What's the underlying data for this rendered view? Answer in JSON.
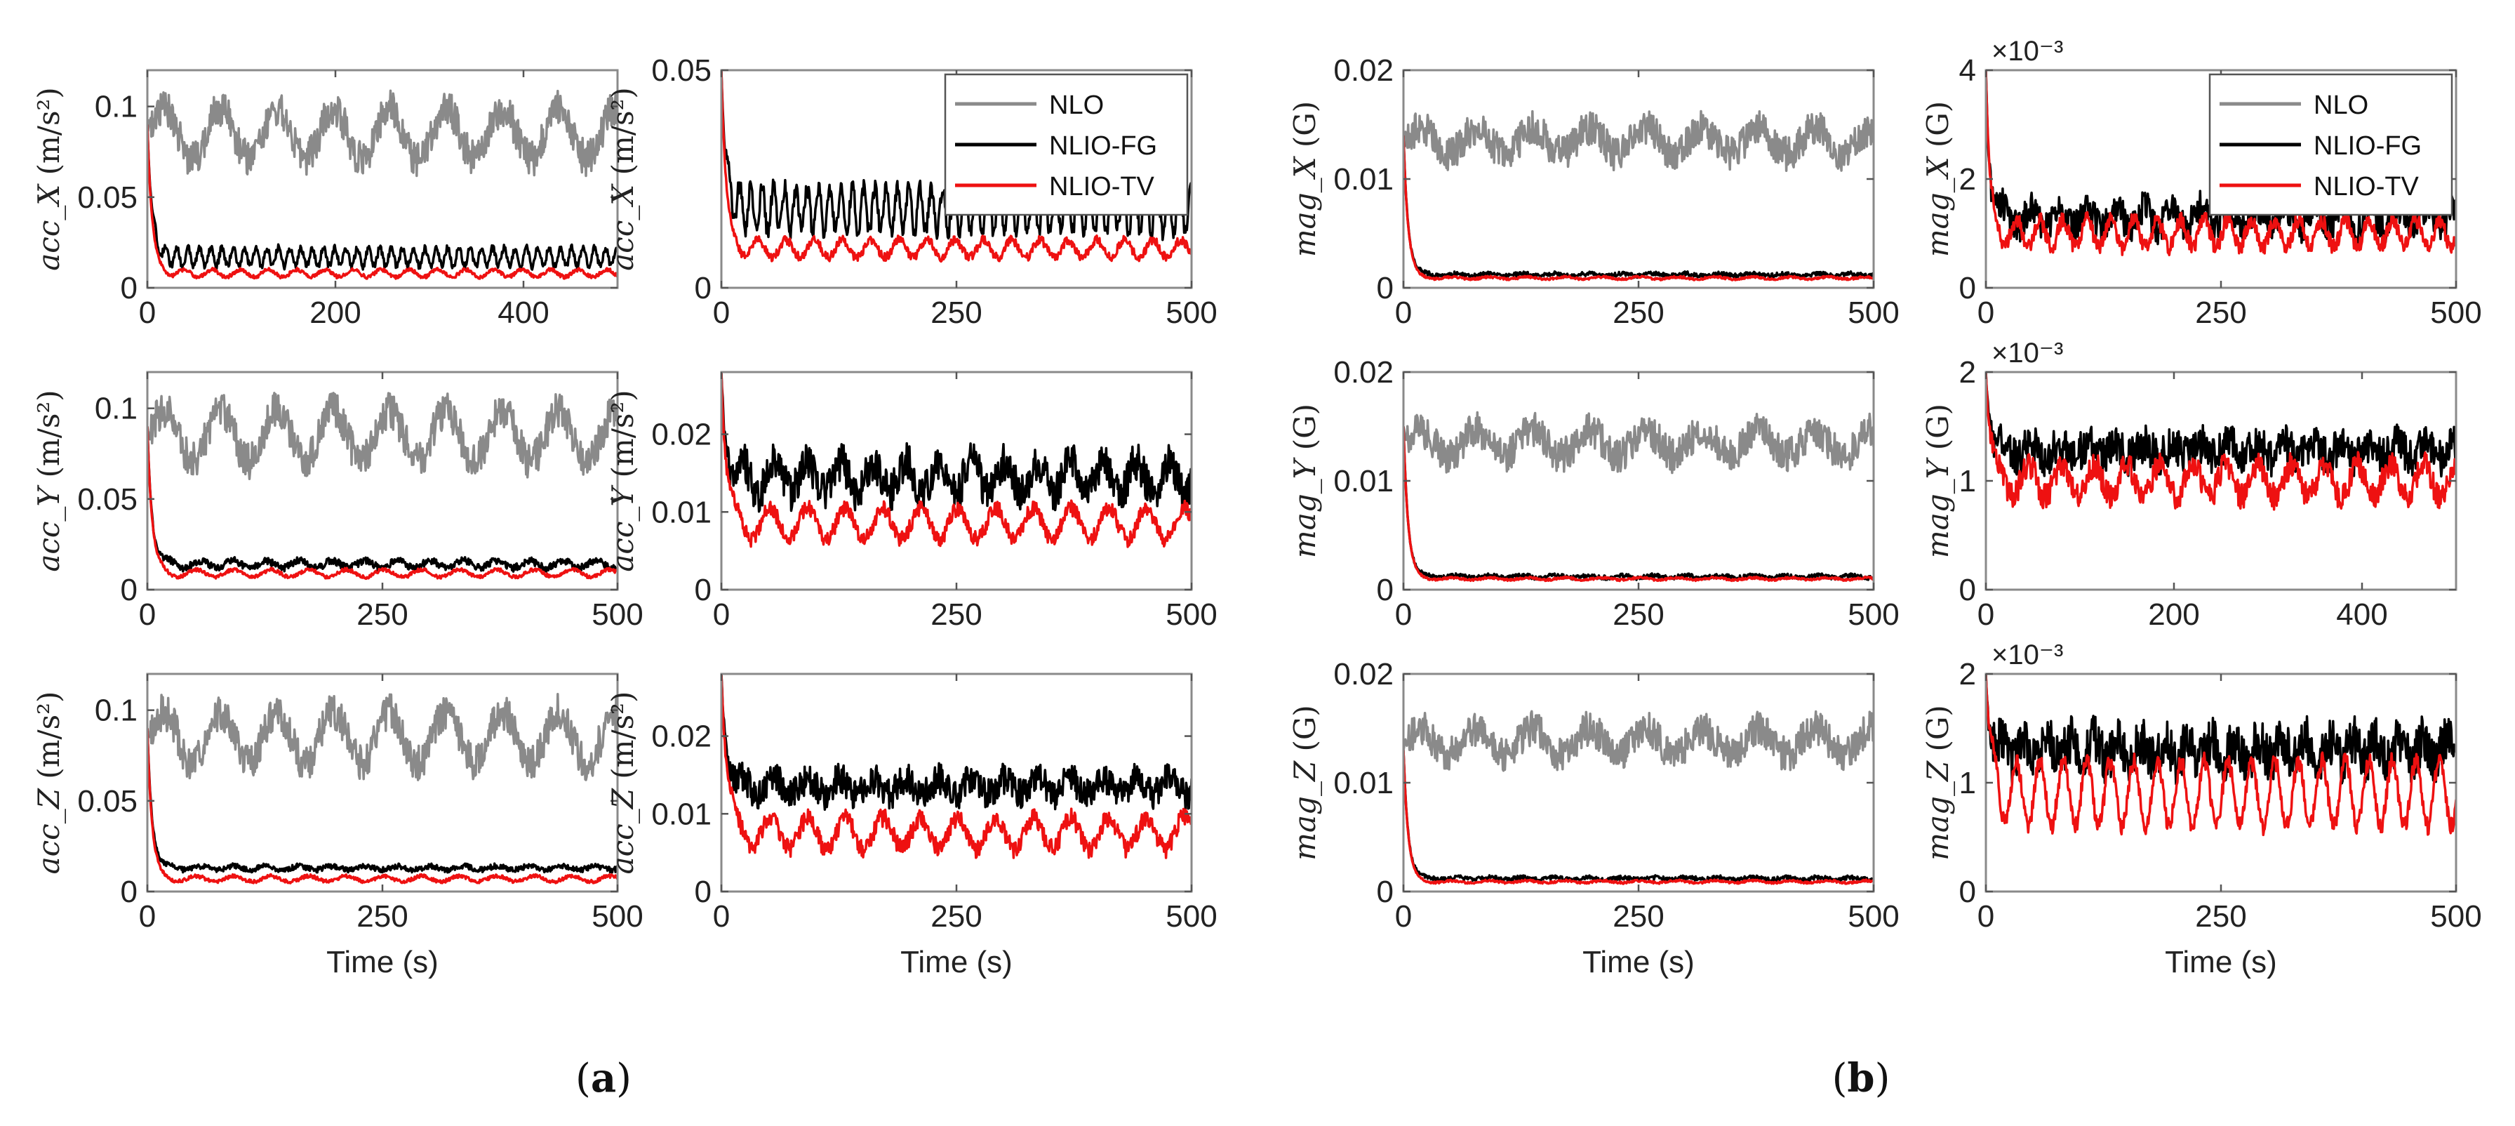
{
  "colors": {
    "NLO": "#8a8a8a",
    "NLIO-FG": "#000000",
    "NLIO-TV": "#ee1111"
  },
  "panels": [
    {
      "label": "(a)",
      "bold": "a"
    },
    {
      "label": "(b)",
      "bold": "b"
    }
  ],
  "chart_data": [
    {
      "id": "a-x-full",
      "type": "line",
      "ylabel_var": "acc_X",
      "ylabel_unit": "(m/s²)",
      "xlabel": "",
      "xlim": [
        0,
        500
      ],
      "ylim": [
        0,
        0.12
      ],
      "xticks": [
        0,
        200,
        400
      ],
      "xtick_labels": [
        "0",
        "200",
        "400"
      ],
      "yticks": [
        0,
        0.05,
        0.1
      ],
      "ytick_labels": [
        "0",
        "0.05",
        "0.1"
      ],
      "exponent": "",
      "series": [
        {
          "name": "NLO",
          "start": 0.09,
          "mean": 0.085,
          "amp": 0.014,
          "noise": 0.01,
          "period": 60,
          "tau": 2
        },
        {
          "name": "NLIO-FG",
          "start": 0.09,
          "mean": 0.017,
          "amp": 0.005,
          "noise": 0.002,
          "period": 12,
          "tau": 5
        },
        {
          "name": "NLIO-TV",
          "start": 0.09,
          "mean": 0.008,
          "amp": 0.002,
          "noise": 0.001,
          "period": 30,
          "tau": 5
        }
      ]
    },
    {
      "id": "a-x-zoom",
      "type": "line",
      "ylabel_var": "acc_X",
      "ylabel_unit": "(m/s²)",
      "xlabel": "",
      "xlim": [
        0,
        500
      ],
      "ylim": [
        0,
        0.05
      ],
      "xticks": [
        0,
        250,
        500
      ],
      "xtick_labels": [
        "0",
        "250",
        "500"
      ],
      "yticks": [
        0,
        0.05
      ],
      "ytick_labels": [
        "0",
        "0.05"
      ],
      "exponent": "",
      "series": [
        {
          "name": "NLIO-FG",
          "start": 0.05,
          "mean": 0.018,
          "amp": 0.005,
          "noise": 0.002,
          "period": 12,
          "tau": 5
        },
        {
          "name": "NLIO-TV",
          "start": 0.05,
          "mean": 0.009,
          "amp": 0.002,
          "noise": 0.001,
          "period": 30,
          "tau": 5
        }
      ]
    },
    {
      "id": "a-y-full",
      "type": "line",
      "ylabel_var": "acc_Y",
      "ylabel_unit": "(m/s²)",
      "xlabel": "",
      "xlim": [
        0,
        500
      ],
      "ylim": [
        0,
        0.12
      ],
      "xticks": [
        0,
        250,
        500
      ],
      "xtick_labels": [
        "0",
        "250",
        "500"
      ],
      "yticks": [
        0,
        0.05,
        0.1
      ],
      "ytick_labels": [
        "0",
        "0.05",
        "0.1"
      ],
      "exponent": "",
      "series": [
        {
          "name": "NLO",
          "start": 0.09,
          "mean": 0.085,
          "amp": 0.014,
          "noise": 0.01,
          "period": 60,
          "tau": 2
        },
        {
          "name": "NLIO-FG",
          "start": 0.09,
          "mean": 0.014,
          "amp": 0.002,
          "noise": 0.002,
          "period": 35,
          "tau": 5
        },
        {
          "name": "NLIO-TV",
          "start": 0.09,
          "mean": 0.009,
          "amp": 0.002,
          "noise": 0.001,
          "period": 40,
          "tau": 5
        }
      ]
    },
    {
      "id": "a-y-zoom",
      "type": "line",
      "ylabel_var": "acc_Y",
      "ylabel_unit": "(m/s²)",
      "xlabel": "",
      "xlim": [
        0,
        500
      ],
      "ylim": [
        0,
        0.028
      ],
      "xticks": [
        0,
        250,
        500
      ],
      "xtick_labels": [
        "0",
        "250",
        "500"
      ],
      "yticks": [
        0,
        0.01,
        0.02
      ],
      "ytick_labels": [
        "0",
        "0.01",
        "0.02"
      ],
      "exponent": "",
      "series": [
        {
          "name": "NLIO-FG",
          "start": 0.028,
          "mean": 0.0145,
          "amp": 0.002,
          "noise": 0.0025,
          "period": 35,
          "tau": 5
        },
        {
          "name": "NLIO-TV",
          "start": 0.028,
          "mean": 0.0085,
          "amp": 0.002,
          "noise": 0.001,
          "period": 40,
          "tau": 5
        }
      ]
    },
    {
      "id": "a-z-full",
      "type": "line",
      "ylabel_var": "acc_Z",
      "ylabel_unit": "(m/s²)",
      "xlabel": "Time (s)",
      "xlim": [
        0,
        500
      ],
      "ylim": [
        0,
        0.12
      ],
      "xticks": [
        0,
        250,
        500
      ],
      "xtick_labels": [
        "0",
        "250",
        "500"
      ],
      "yticks": [
        0,
        0.05,
        0.1
      ],
      "ytick_labels": [
        "0",
        "0.05",
        "0.1"
      ],
      "exponent": "",
      "series": [
        {
          "name": "NLO",
          "start": 0.09,
          "mean": 0.085,
          "amp": 0.014,
          "noise": 0.01,
          "period": 60,
          "tau": 2
        },
        {
          "name": "NLIO-FG",
          "start": 0.09,
          "mean": 0.013,
          "amp": 0.001,
          "noise": 0.0015,
          "period": 35,
          "tau": 5
        },
        {
          "name": "NLIO-TV",
          "start": 0.09,
          "mean": 0.007,
          "amp": 0.0015,
          "noise": 0.001,
          "period": 40,
          "tau": 5
        }
      ]
    },
    {
      "id": "a-z-zoom",
      "type": "line",
      "ylabel_var": "acc_Z",
      "ylabel_unit": "(m/s²)",
      "xlabel": "Time (s)",
      "xlim": [
        0,
        500
      ],
      "ylim": [
        0,
        0.028
      ],
      "xticks": [
        0,
        250,
        500
      ],
      "xtick_labels": [
        "0",
        "250",
        "500"
      ],
      "yticks": [
        0,
        0.01,
        0.02
      ],
      "ytick_labels": [
        "0",
        "0.01",
        "0.02"
      ],
      "exponent": "",
      "series": [
        {
          "name": "NLIO-FG",
          "start": 0.028,
          "mean": 0.0135,
          "amp": 0.001,
          "noise": 0.002,
          "period": 35,
          "tau": 5
        },
        {
          "name": "NLIO-TV",
          "start": 0.028,
          "mean": 0.0075,
          "amp": 0.002,
          "noise": 0.0012,
          "period": 40,
          "tau": 6
        }
      ]
    },
    {
      "id": "b-x-full",
      "type": "line",
      "ylabel_var": "mag_X",
      "ylabel_unit": "(G)",
      "xlabel": "",
      "xlim": [
        0,
        500
      ],
      "ylim": [
        0,
        0.02
      ],
      "xticks": [
        0,
        250,
        500
      ],
      "xtick_labels": [
        "0",
        "250",
        "500"
      ],
      "yticks": [
        0,
        0.01,
        0.02
      ],
      "ytick_labels": [
        "0",
        "0.01",
        "0.02"
      ],
      "exponent": "",
      "series": [
        {
          "name": "NLO",
          "start": 0.014,
          "mean": 0.0135,
          "amp": 0.0012,
          "noise": 0.0016,
          "period": 60,
          "tau": 2
        },
        {
          "name": "NLIO-FG",
          "start": 0.014,
          "mean": 0.0012,
          "amp": 0.0001,
          "noise": 0.0002,
          "period": 35,
          "tau": 5
        },
        {
          "name": "NLIO-TV",
          "start": 0.014,
          "mean": 0.0009,
          "amp": 0.0001,
          "noise": 0.0001,
          "period": 40,
          "tau": 5
        }
      ]
    },
    {
      "id": "b-x-zoom",
      "type": "line",
      "ylabel_var": "mag_X",
      "ylabel_unit": "(G)",
      "xlabel": "",
      "xlim": [
        0,
        500
      ],
      "ylim": [
        0,
        4
      ],
      "xticks": [
        0,
        250,
        500
      ],
      "xtick_labels": [
        "0",
        "250",
        "500"
      ],
      "yticks": [
        0,
        2,
        4
      ],
      "ytick_labels": [
        "0",
        "2",
        "4"
      ],
      "exponent": "×10⁻³",
      "series": [
        {
          "name": "NLIO-FG",
          "start": 4,
          "mean": 1.3,
          "amp": 0.2,
          "noise": 0.3,
          "period": 30,
          "tau": 4
        },
        {
          "name": "NLIO-TV",
          "start": 4,
          "mean": 1.0,
          "amp": 0.25,
          "noise": 0.15,
          "period": 25,
          "tau": 4
        }
      ]
    },
    {
      "id": "b-y-full",
      "type": "line",
      "ylabel_var": "mag_Y",
      "ylabel_unit": "(G)",
      "xlabel": "",
      "xlim": [
        0,
        500
      ],
      "ylim": [
        0,
        0.02
      ],
      "xticks": [
        0,
        250,
        500
      ],
      "xtick_labels": [
        "0",
        "250",
        "500"
      ],
      "yticks": [
        0,
        0.01,
        0.02
      ],
      "ytick_labels": [
        "0",
        "0.01",
        "0.02"
      ],
      "exponent": "",
      "series": [
        {
          "name": "NLO",
          "start": 0.015,
          "mean": 0.0135,
          "amp": 0.0012,
          "noise": 0.0016,
          "period": 60,
          "tau": 2
        },
        {
          "name": "NLIO-FG",
          "start": 0.015,
          "mean": 0.0012,
          "amp": 0.0001,
          "noise": 0.0002,
          "period": 35,
          "tau": 5
        },
        {
          "name": "NLIO-TV",
          "start": 0.015,
          "mean": 0.001,
          "amp": 0.0001,
          "noise": 0.0001,
          "period": 40,
          "tau": 5
        }
      ]
    },
    {
      "id": "b-y-zoom",
      "type": "line",
      "ylabel_var": "mag_Y",
      "ylabel_unit": "(G)",
      "xlabel": "",
      "xlim": [
        0,
        500
      ],
      "ylim": [
        0,
        2
      ],
      "xticks": [
        0,
        200,
        400
      ],
      "xtick_labels": [
        "0",
        "200",
        "400"
      ],
      "yticks": [
        0,
        1,
        2
      ],
      "ytick_labels": [
        "0",
        "1",
        "2"
      ],
      "exponent": "×10⁻³",
      "series": [
        {
          "name": "NLIO-FG",
          "start": 2,
          "mean": 1.28,
          "amp": 0.06,
          "noise": 0.18,
          "period": 30,
          "tau": 4
        },
        {
          "name": "NLIO-TV",
          "start": 2,
          "mean": 1.0,
          "amp": 0.15,
          "noise": 0.12,
          "period": 35,
          "tau": 5
        }
      ]
    },
    {
      "id": "b-z-full",
      "type": "line",
      "ylabel_var": "mag_Z",
      "ylabel_unit": "(G)",
      "xlabel": "Time (s)",
      "xlim": [
        0,
        500
      ],
      "ylim": [
        0,
        0.02
      ],
      "xticks": [
        0,
        250,
        500
      ],
      "xtick_labels": [
        "0",
        "250",
        "500"
      ],
      "yticks": [
        0,
        0.01,
        0.02
      ],
      "ytick_labels": [
        "0",
        "0.01",
        "0.02"
      ],
      "exponent": "",
      "series": [
        {
          "name": "NLO",
          "start": 0.013,
          "mean": 0.0138,
          "amp": 0.0012,
          "noise": 0.0016,
          "period": 60,
          "tau": 2
        },
        {
          "name": "NLIO-FG",
          "start": 0.013,
          "mean": 0.0012,
          "amp": 0.0001,
          "noise": 0.0002,
          "period": 35,
          "tau": 5
        },
        {
          "name": "NLIO-TV",
          "start": 0.013,
          "mean": 0.0009,
          "amp": 0.0001,
          "noise": 0.0001,
          "period": 40,
          "tau": 5
        }
      ]
    },
    {
      "id": "b-z-zoom",
      "type": "line",
      "ylabel_var": "mag_Z",
      "ylabel_unit": "(G)",
      "xlabel": "Time (s)",
      "xlim": [
        0,
        500
      ],
      "ylim": [
        0,
        2
      ],
      "xticks": [
        0,
        250,
        500
      ],
      "xtick_labels": [
        "0",
        "250",
        "500"
      ],
      "yticks": [
        0,
        1,
        2
      ],
      "ytick_labels": [
        "0",
        "1",
        "2"
      ],
      "exponent": "×10⁻³",
      "series": [
        {
          "name": "NLIO-FG",
          "start": 2,
          "mean": 1.3,
          "amp": 0.1,
          "noise": 0.22,
          "period": 25,
          "tau": 4
        },
        {
          "name": "NLIO-TV",
          "start": 2,
          "mean": 0.9,
          "amp": 0.3,
          "noise": 0.08,
          "period": 25,
          "tau": 5
        }
      ]
    }
  ],
  "legends": [
    {
      "attach": "a-x-zoom",
      "position": "top-right",
      "entries": [
        "NLO",
        "NLIO-FG",
        "NLIO-TV"
      ]
    },
    {
      "attach": "b-x-zoom",
      "position": "top-right",
      "entries": [
        "NLO",
        "NLIO-FG",
        "NLIO-TV"
      ]
    }
  ]
}
